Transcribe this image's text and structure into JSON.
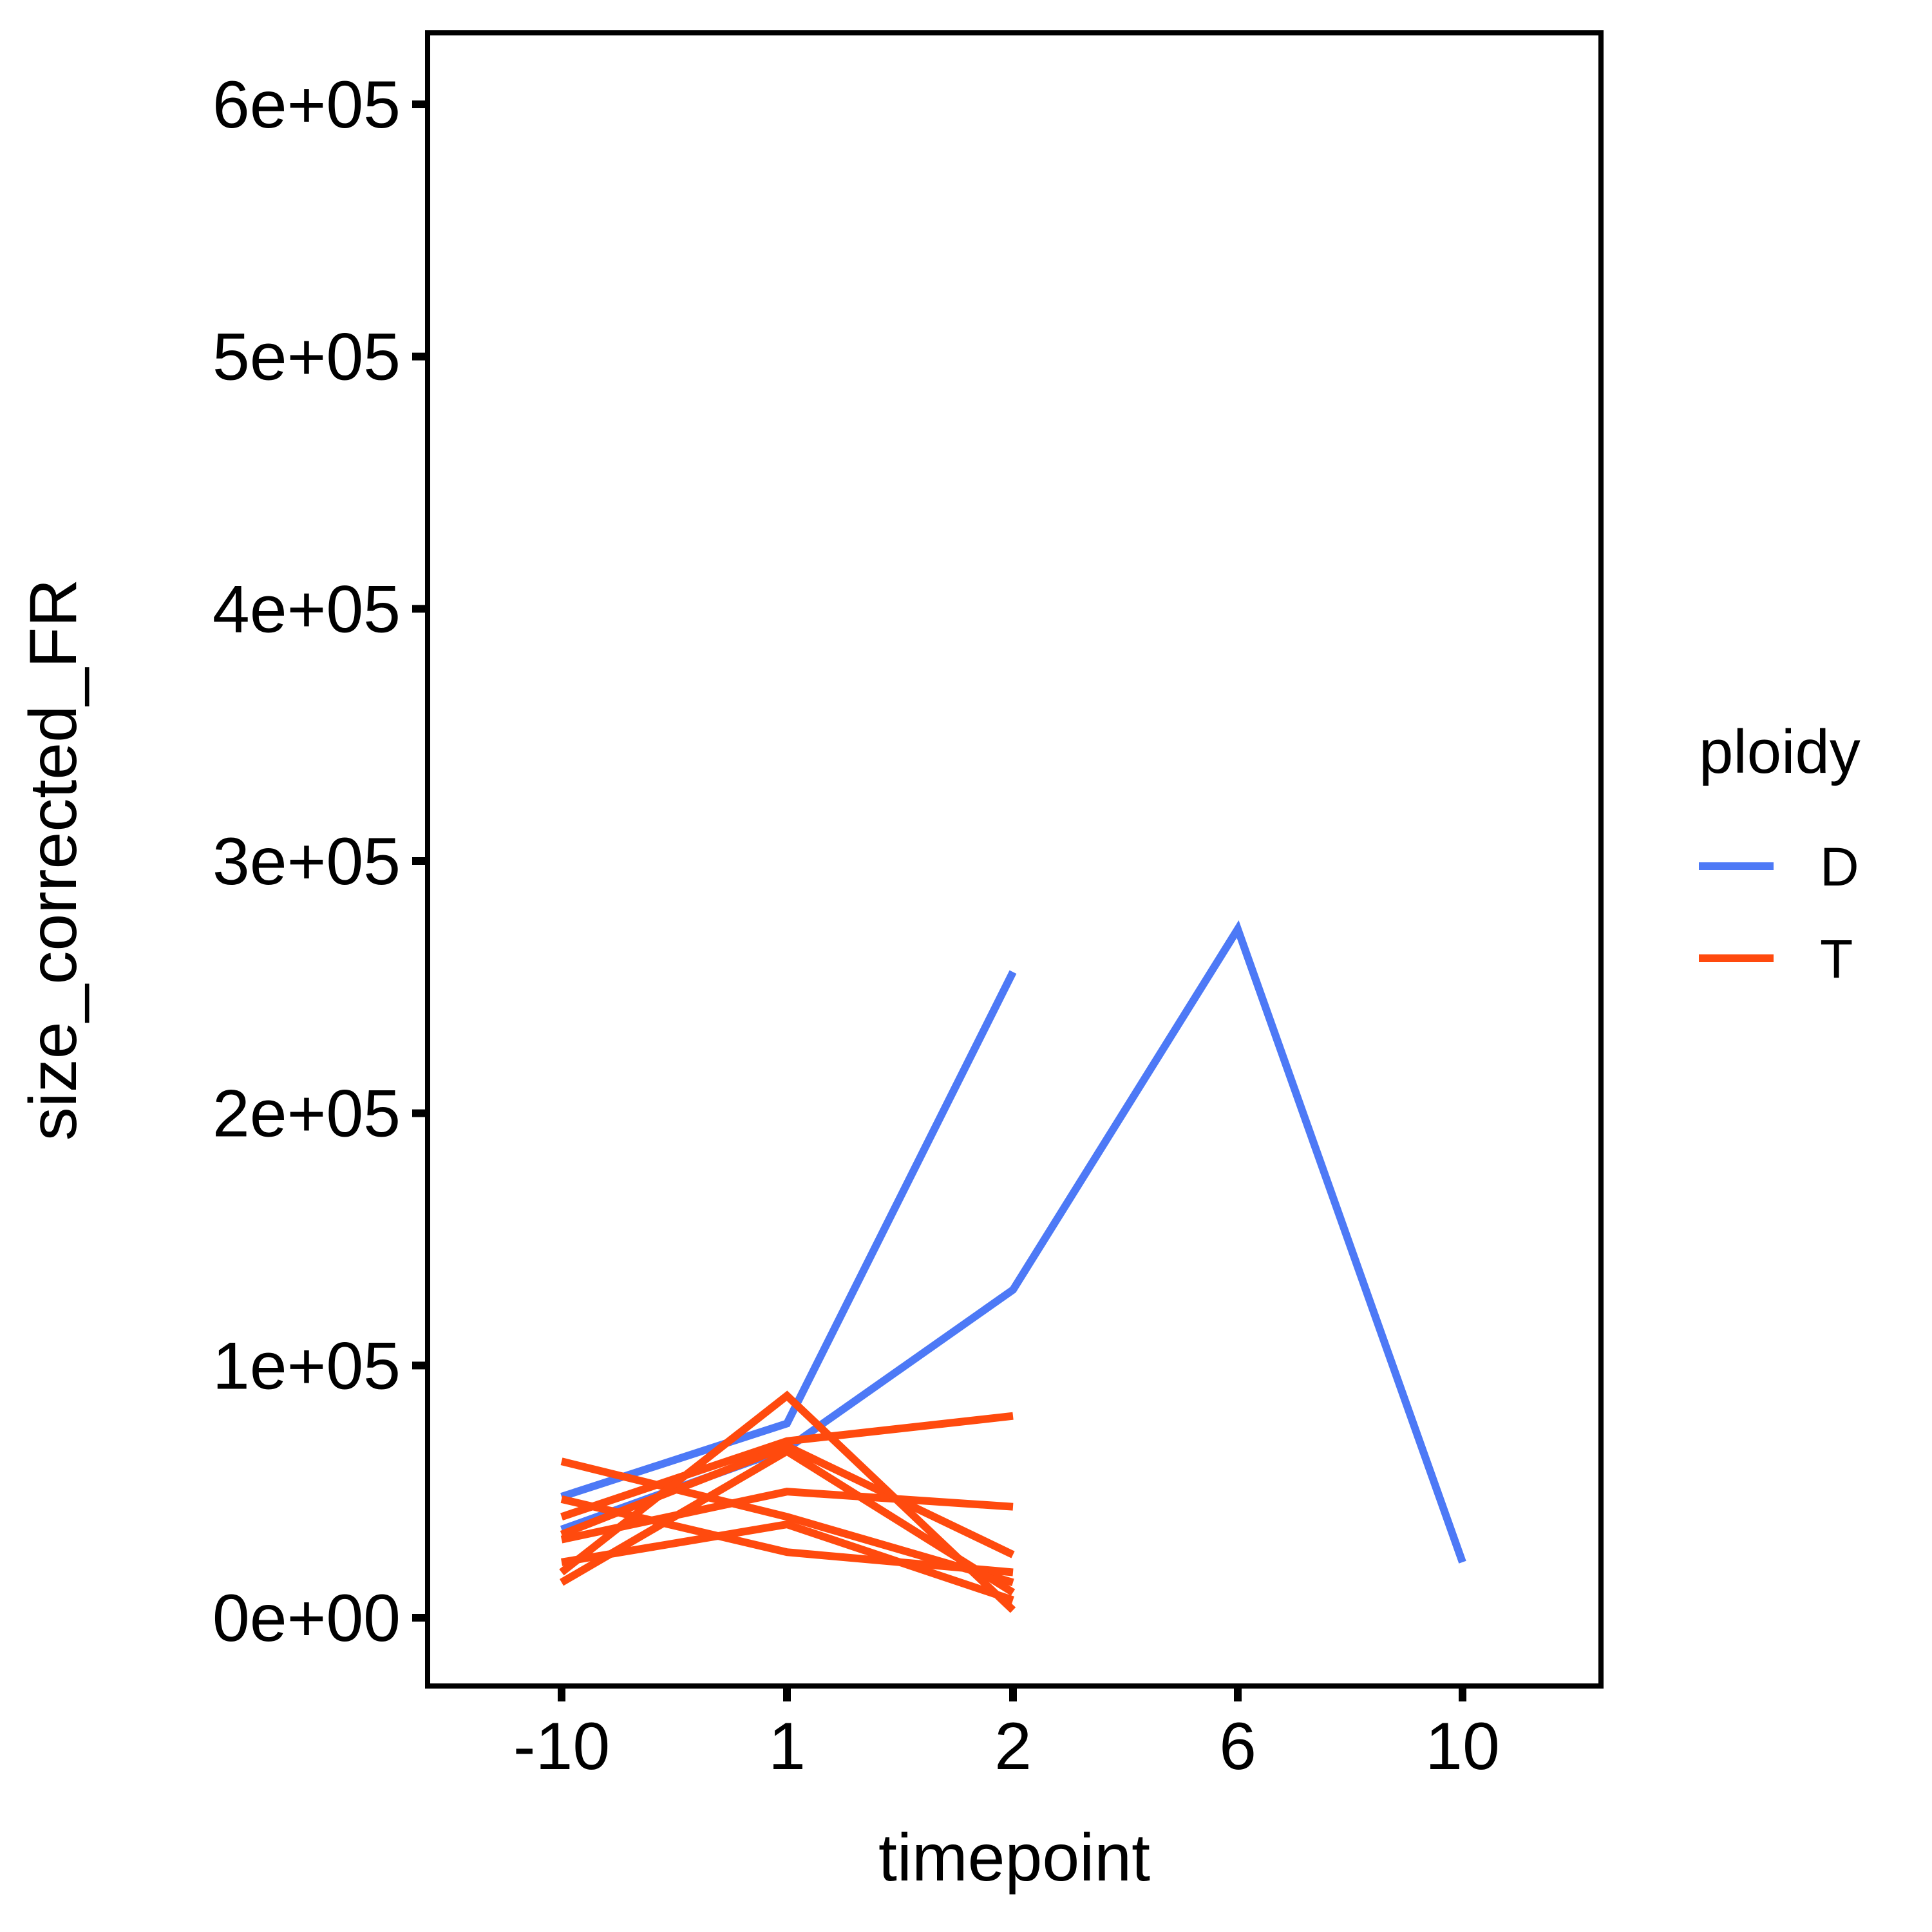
{
  "chart_data": {
    "type": "line",
    "xlabel": "timepoint",
    "ylabel": "size_corrected_FR",
    "x_categories": [
      "-10",
      "1",
      "2",
      "6",
      "10"
    ],
    "y_ticks": [
      0,
      100000,
      200000,
      300000,
      400000,
      500000,
      600000
    ],
    "y_tick_labels": [
      "0e+00",
      "1e+05",
      "2e+05",
      "3e+05",
      "4e+05",
      "5e+05",
      "6e+05"
    ],
    "ylim": [
      -28000,
      628000
    ],
    "grid": false,
    "legend": {
      "title": "ploidy",
      "position": "right",
      "entries": [
        {
          "label": "D",
          "color": "#4D79F6"
        },
        {
          "label": "T",
          "color": "#FF4A0E"
        }
      ]
    },
    "series": [
      {
        "group": "D",
        "color": "#4D79F6",
        "points": [
          [
            "-10",
            48000
          ],
          [
            "1",
            77000
          ],
          [
            "2",
            256000
          ]
        ]
      },
      {
        "group": "D",
        "color": "#4D79F6",
        "points": [
          [
            "-10",
            35000
          ],
          [
            "1",
            67000
          ],
          [
            "2",
            130000
          ],
          [
            "6",
            273000
          ],
          [
            "10",
            22000
          ]
        ]
      },
      {
        "group": "T",
        "color": "#FF4A0E",
        "points": [
          [
            "-10",
            62000
          ],
          [
            "1",
            40000
          ],
          [
            "2",
            14000
          ]
        ]
      },
      {
        "group": "T",
        "color": "#FF4A0E",
        "points": [
          [
            "-10",
            47000
          ],
          [
            "1",
            26000
          ],
          [
            "2",
            18000
          ]
        ]
      },
      {
        "group": "T",
        "color": "#FF4A0E",
        "points": [
          [
            "-10",
            40000
          ],
          [
            "1",
            70000
          ],
          [
            "2",
            80000
          ]
        ]
      },
      {
        "group": "T",
        "color": "#FF4A0E",
        "points": [
          [
            "-10",
            33000
          ],
          [
            "1",
            68000
          ],
          [
            "2",
            25000
          ]
        ]
      },
      {
        "group": "T",
        "color": "#FF4A0E",
        "points": [
          [
            "-10",
            31000
          ],
          [
            "1",
            50000
          ],
          [
            "2",
            44000
          ]
        ]
      },
      {
        "group": "T",
        "color": "#FF4A0E",
        "points": [
          [
            "-10",
            22000
          ],
          [
            "1",
            37000
          ],
          [
            "2",
            7000
          ]
        ]
      },
      {
        "group": "T",
        "color": "#FF4A0E",
        "points": [
          [
            "-10",
            18000
          ],
          [
            "1",
            88000
          ],
          [
            "2",
            3000
          ]
        ]
      },
      {
        "group": "T",
        "color": "#FF4A0E",
        "points": [
          [
            "-10",
            14000
          ],
          [
            "1",
            66000
          ],
          [
            "2",
            10000
          ]
        ]
      }
    ]
  }
}
